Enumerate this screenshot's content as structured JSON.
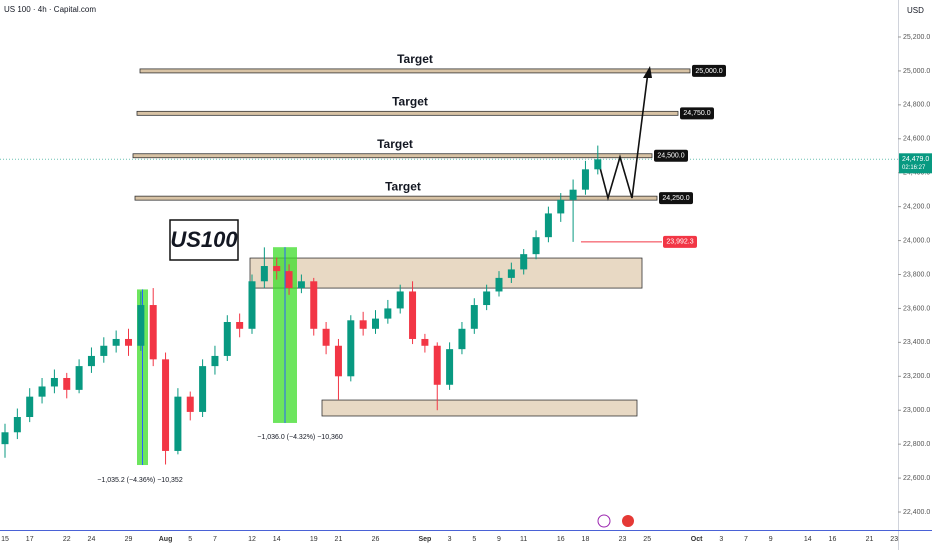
{
  "header": {
    "symbol": "US 100 · 4h · Capital.com",
    "currency": "USD"
  },
  "chart_data": {
    "type": "candlestick",
    "categories": [
      "15",
      null,
      "17",
      null,
      null,
      "22",
      null,
      "24",
      null,
      null,
      "29",
      null,
      null,
      "Aug",
      null,
      "5",
      null,
      "7",
      null,
      null,
      "12",
      null,
      "14",
      null,
      null,
      "19",
      null,
      "21",
      null,
      null,
      "26",
      null,
      null,
      null,
      "Sep",
      null,
      "3",
      null,
      "5",
      null,
      "9",
      null,
      "11",
      null,
      null,
      "16",
      null,
      "18",
      null,
      null,
      "23",
      null,
      "25",
      null,
      null,
      null,
      "Oct",
      null,
      "3",
      null,
      "7",
      null,
      "9",
      null,
      null,
      "14",
      null,
      "16",
      null,
      null,
      "21",
      null,
      "23"
    ],
    "open": [
      22800,
      22870,
      22960,
      23080,
      23140,
      23190,
      23120,
      23260,
      23320,
      23380,
      23420,
      23380,
      23620,
      23300,
      22760,
      23080,
      22990,
      23260,
      23320,
      23520,
      23480,
      23760,
      23850,
      23820,
      23720,
      23760,
      23480,
      23380,
      23200,
      23530,
      23480,
      23540,
      23600,
      23700,
      23420,
      23380,
      23150,
      23360,
      23480,
      23620,
      23700,
      23780,
      23830,
      23920,
      24020,
      24160,
      24240,
      24300,
      24420,
      null,
      null,
      null,
      null,
      null,
      null,
      null,
      null,
      null,
      null,
      null,
      null,
      null,
      null,
      null,
      null,
      null,
      null,
      null,
      null,
      null,
      null,
      null,
      null
    ],
    "high": [
      22920,
      23010,
      23130,
      23190,
      23240,
      23220,
      23300,
      23370,
      23430,
      23470,
      23480,
      23700,
      23720,
      23340,
      23130,
      23110,
      23300,
      23380,
      23560,
      23570,
      23800,
      23960,
      23900,
      23860,
      23800,
      23780,
      23520,
      23420,
      23560,
      23580,
      23590,
      23650,
      23740,
      23760,
      23450,
      23400,
      23400,
      23520,
      23660,
      23740,
      23820,
      23870,
      23950,
      24060,
      24200,
      24280,
      24360,
      24470,
      24560,
      null,
      null,
      null,
      null,
      null,
      null,
      null,
      null,
      null,
      null,
      null,
      null,
      null,
      null,
      null,
      null,
      null,
      null,
      null,
      null,
      null,
      null,
      null,
      null
    ],
    "low": [
      22720,
      22830,
      22930,
      23040,
      23100,
      23070,
      23100,
      23220,
      23280,
      23340,
      23320,
      23350,
      23260,
      22680,
      22740,
      22940,
      22960,
      23210,
      23290,
      23430,
      23450,
      23720,
      23770,
      23680,
      23690,
      23440,
      23330,
      23060,
      23170,
      23440,
      23450,
      23510,
      23570,
      23390,
      23340,
      23000,
      23120,
      23330,
      23450,
      23590,
      23670,
      23750,
      23800,
      23890,
      23990,
      24110,
      23992.3,
      24270,
      24390,
      null,
      null,
      null,
      null,
      null,
      null,
      null,
      null,
      null,
      null,
      null,
      null,
      null,
      null,
      null,
      null,
      null,
      null,
      null,
      null,
      null,
      null,
      null,
      null
    ],
    "close": [
      22870,
      22960,
      23080,
      23140,
      23190,
      23120,
      23260,
      23320,
      23380,
      23420,
      23380,
      23620,
      23300,
      22760,
      23080,
      22990,
      23260,
      23320,
      23520,
      23480,
      23760,
      23850,
      23820,
      23720,
      23760,
      23480,
      23380,
      23200,
      23530,
      23480,
      23540,
      23600,
      23700,
      23420,
      23380,
      23150,
      23360,
      23480,
      23620,
      23700,
      23780,
      23830,
      23920,
      24020,
      24160,
      24240,
      24300,
      24420,
      24479,
      null,
      null,
      null,
      null,
      null,
      null,
      null,
      null,
      null,
      null,
      null,
      null,
      null,
      null,
      null,
      null,
      null,
      null,
      null,
      null,
      null,
      null,
      null,
      null
    ],
    "up_color": "#089981",
    "down_color": "#f23645",
    "ylim": [
      22294,
      25418
    ],
    "yticks": [
      {
        "value": 22400,
        "label": "22,400.0"
      },
      {
        "value": 22600,
        "label": "22,600.0"
      },
      {
        "value": 22800,
        "label": "22,800.0"
      },
      {
        "value": 23000,
        "label": "23,000.0"
      },
      {
        "value": 23200,
        "label": "23,200.0"
      },
      {
        "value": 23400,
        "label": "23,400.0"
      },
      {
        "value": 23600,
        "label": "23,600.0"
      },
      {
        "value": 23800,
        "label": "23,800.0"
      },
      {
        "value": 24000,
        "label": "24,000.0"
      },
      {
        "value": 24200,
        "label": "24,200.0"
      },
      {
        "value": 24400,
        "label": "24,400.0"
      },
      {
        "value": 24600,
        "label": "24,600.0"
      },
      {
        "value": 24800,
        "label": "24,800.0"
      },
      {
        "value": 25000,
        "label": "25,000.0"
      },
      {
        "value": 25200,
        "label": "25,200.0"
      }
    ],
    "grid": false,
    "targets": [
      {
        "label": "Target",
        "value": 25000,
        "value_label": "25,000.0"
      },
      {
        "label": "Target",
        "value": 24750,
        "value_label": "24,750.0"
      },
      {
        "label": "Target",
        "value": 24500,
        "value_label": "24,500.0"
      },
      {
        "label": "Target",
        "value": 24250,
        "value_label": "24,250.0"
      }
    ],
    "zones": [
      {
        "low": 23720,
        "high": 23897
      },
      {
        "low": 22966,
        "high": 23060
      }
    ],
    "measures": [
      {
        "high": 23712,
        "low": 22677,
        "label": "−1,035.2 (−4.36%) −10,352"
      },
      {
        "high": 23961,
        "low": 22925,
        "label": "−1,036.0 (−4.32%) −10,360"
      }
    ],
    "annotation": "US100",
    "last_price": {
      "value": 24479,
      "label": "24,479.0",
      "countdown": "02:16:27"
    },
    "low_marker": {
      "value": 23992.3,
      "label": "23,992.3"
    }
  }
}
